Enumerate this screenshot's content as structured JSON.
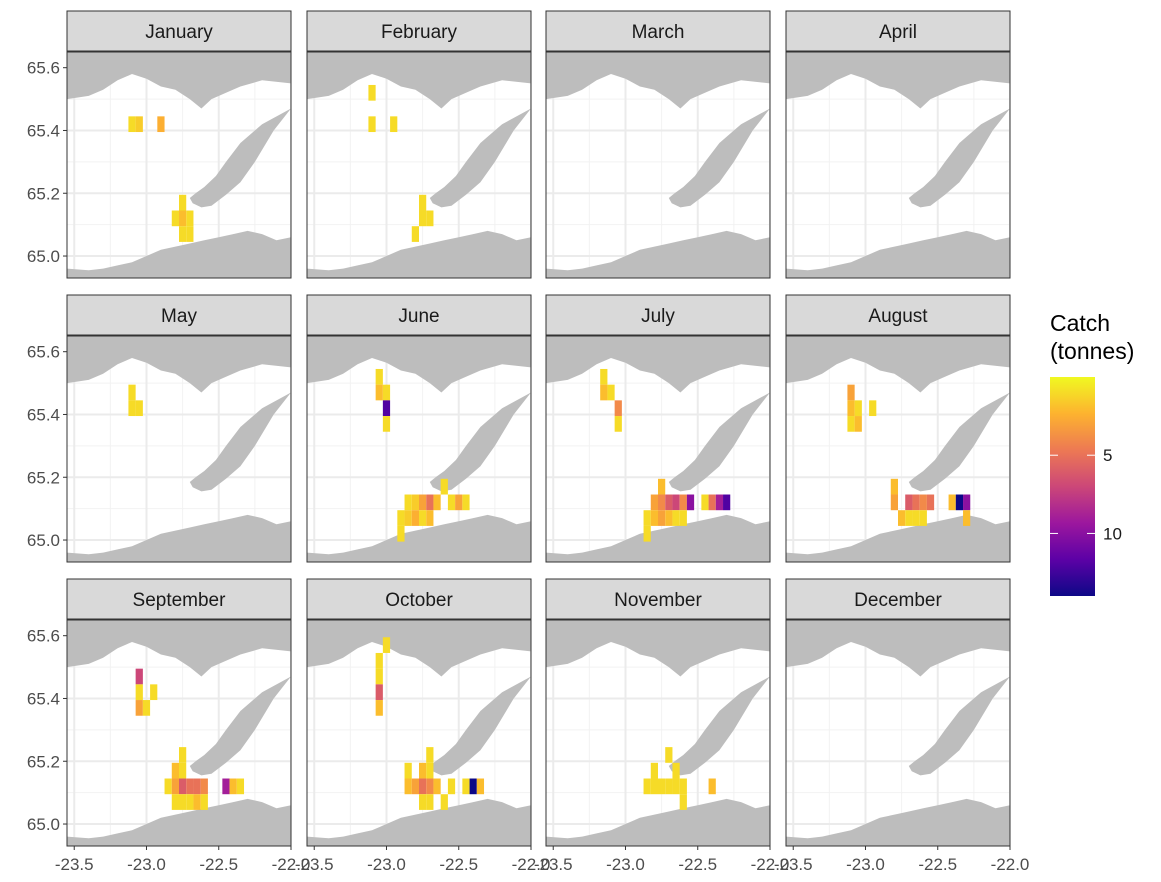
{
  "chart_data": {
    "type": "heatmap",
    "facet_by": "month",
    "layout": {
      "rows": 3,
      "cols": 4
    },
    "x_ticks": [
      "-23.5",
      "-23.0",
      "-22.5",
      "-22.0"
    ],
    "x_tick_values": [
      -23.5,
      -23.0,
      -22.5,
      -22.0
    ],
    "y_ticks": [
      "65.0",
      "65.2",
      "65.4",
      "65.6"
    ],
    "y_tick_values": [
      65.0,
      65.2,
      65.4,
      65.6
    ],
    "xlim": [
      -23.55,
      -22.0
    ],
    "ylim": [
      64.93,
      65.65
    ],
    "cell_size": {
      "lon": 0.05,
      "lat": 0.05
    },
    "legend": {
      "title_lines": [
        "Catch",
        "(tonnes)"
      ],
      "breaks": [
        "5",
        "10"
      ],
      "break_values": [
        5,
        10
      ],
      "range": [
        0,
        14
      ],
      "position": "right",
      "palette": [
        "#f0f921",
        "#fdb32f",
        "#ed7953",
        "#cc4778",
        "#9c179e",
        "#5c01a6",
        "#0d0887"
      ]
    },
    "background": {
      "land_color": "#bdbdbd",
      "sea_color": "#ffffff",
      "grid_color": "#ebebeb",
      "grid": true
    },
    "panels": [
      {
        "month": "January",
        "cells": [
          [
            -23.1,
            65.42,
            1
          ],
          [
            -23.05,
            65.42,
            1.5
          ],
          [
            -22.9,
            65.42,
            2.5
          ],
          [
            -22.75,
            65.17,
            1
          ],
          [
            -22.8,
            65.12,
            1
          ],
          [
            -22.75,
            65.12,
            2
          ],
          [
            -22.7,
            65.12,
            1
          ],
          [
            -22.75,
            65.07,
            1
          ],
          [
            -22.7,
            65.07,
            1
          ]
        ]
      },
      {
        "month": "February",
        "cells": [
          [
            -23.1,
            65.52,
            1
          ],
          [
            -23.1,
            65.42,
            1
          ],
          [
            -22.95,
            65.42,
            1
          ],
          [
            -22.75,
            65.17,
            1
          ],
          [
            -22.75,
            65.12,
            1
          ],
          [
            -22.7,
            65.12,
            1
          ],
          [
            -22.8,
            65.07,
            1
          ]
        ]
      },
      {
        "month": "March",
        "cells": []
      },
      {
        "month": "April",
        "cells": []
      },
      {
        "month": "May",
        "cells": [
          [
            -23.1,
            65.47,
            1
          ],
          [
            -23.1,
            65.42,
            1
          ],
          [
            -23.05,
            65.42,
            1
          ]
        ]
      },
      {
        "month": "June",
        "cells": [
          [
            -23.05,
            65.52,
            1
          ],
          [
            -23.05,
            65.47,
            2
          ],
          [
            -23.0,
            65.47,
            1
          ],
          [
            -23.0,
            65.42,
            12
          ],
          [
            -23.0,
            65.37,
            1
          ],
          [
            -22.6,
            65.17,
            1
          ],
          [
            -22.85,
            65.12,
            1
          ],
          [
            -22.8,
            65.12,
            1.5
          ],
          [
            -22.75,
            65.12,
            3
          ],
          [
            -22.7,
            65.12,
            5
          ],
          [
            -22.65,
            65.12,
            2
          ],
          [
            -22.55,
            65.12,
            1
          ],
          [
            -22.5,
            65.12,
            3
          ],
          [
            -22.45,
            65.12,
            1
          ],
          [
            -22.9,
            65.07,
            1
          ],
          [
            -22.85,
            65.07,
            1.5
          ],
          [
            -22.8,
            65.07,
            2.5
          ],
          [
            -22.75,
            65.07,
            1
          ],
          [
            -22.7,
            65.07,
            2
          ],
          [
            -22.9,
            65.02,
            1
          ]
        ]
      },
      {
        "month": "July",
        "cells": [
          [
            -23.15,
            65.52,
            1
          ],
          [
            -23.15,
            65.47,
            2
          ],
          [
            -23.1,
            65.47,
            1
          ],
          [
            -23.05,
            65.42,
            4
          ],
          [
            -23.05,
            65.37,
            1
          ],
          [
            -22.75,
            65.17,
            2
          ],
          [
            -22.8,
            65.12,
            3
          ],
          [
            -22.75,
            65.12,
            4
          ],
          [
            -22.7,
            65.12,
            6
          ],
          [
            -22.65,
            65.12,
            7
          ],
          [
            -22.6,
            65.12,
            4
          ],
          [
            -22.55,
            65.12,
            10
          ],
          [
            -22.45,
            65.12,
            1
          ],
          [
            -22.4,
            65.12,
            5
          ],
          [
            -22.35,
            65.12,
            9
          ],
          [
            -22.3,
            65.12,
            12
          ],
          [
            -22.85,
            65.07,
            1
          ],
          [
            -22.8,
            65.07,
            2
          ],
          [
            -22.75,
            65.07,
            3
          ],
          [
            -22.7,
            65.07,
            2
          ],
          [
            -22.65,
            65.07,
            1
          ],
          [
            -22.6,
            65.07,
            1
          ],
          [
            -22.85,
            65.02,
            1
          ]
        ]
      },
      {
        "month": "August",
        "cells": [
          [
            -23.1,
            65.47,
            3
          ],
          [
            -23.1,
            65.42,
            2
          ],
          [
            -23.05,
            65.42,
            1
          ],
          [
            -22.95,
            65.42,
            1
          ],
          [
            -23.1,
            65.37,
            1
          ],
          [
            -23.05,
            65.37,
            2
          ],
          [
            -22.8,
            65.17,
            2
          ],
          [
            -22.8,
            65.12,
            3
          ],
          [
            -22.7,
            65.12,
            6
          ],
          [
            -22.65,
            65.12,
            5
          ],
          [
            -22.6,
            65.12,
            4
          ],
          [
            -22.55,
            65.12,
            5
          ],
          [
            -22.4,
            65.12,
            2
          ],
          [
            -22.35,
            65.12,
            14
          ],
          [
            -22.3,
            65.12,
            10
          ],
          [
            -22.75,
            65.07,
            2
          ],
          [
            -22.7,
            65.07,
            1
          ],
          [
            -22.65,
            65.07,
            1
          ],
          [
            -22.6,
            65.07,
            1
          ],
          [
            -22.3,
            65.07,
            2
          ]
        ]
      },
      {
        "month": "September",
        "cells": [
          [
            -23.05,
            65.47,
            7
          ],
          [
            -23.05,
            65.42,
            1
          ],
          [
            -22.95,
            65.42,
            1
          ],
          [
            -23.05,
            65.37,
            3
          ],
          [
            -23.0,
            65.37,
            1
          ],
          [
            -22.75,
            65.22,
            1
          ],
          [
            -22.8,
            65.17,
            2
          ],
          [
            -22.75,
            65.17,
            1
          ],
          [
            -22.85,
            65.12,
            1
          ],
          [
            -22.8,
            65.12,
            3
          ],
          [
            -22.75,
            65.12,
            6
          ],
          [
            -22.7,
            65.12,
            5
          ],
          [
            -22.65,
            65.12,
            5
          ],
          [
            -22.6,
            65.12,
            4
          ],
          [
            -22.45,
            65.12,
            9
          ],
          [
            -22.4,
            65.12,
            2
          ],
          [
            -22.35,
            65.12,
            1
          ],
          [
            -22.8,
            65.07,
            1
          ],
          [
            -22.75,
            65.07,
            1
          ],
          [
            -22.7,
            65.07,
            1
          ],
          [
            -22.65,
            65.07,
            2
          ],
          [
            -22.6,
            65.07,
            1
          ]
        ]
      },
      {
        "month": "October",
        "cells": [
          [
            -23.05,
            65.52,
            1
          ],
          [
            -23.0,
            65.57,
            1
          ],
          [
            -23.05,
            65.47,
            1
          ],
          [
            -23.05,
            65.42,
            6
          ],
          [
            -23.05,
            65.37,
            2
          ],
          [
            -22.7,
            65.22,
            1
          ],
          [
            -22.85,
            65.17,
            1
          ],
          [
            -22.75,
            65.17,
            2
          ],
          [
            -22.7,
            65.17,
            1
          ],
          [
            -22.85,
            65.12,
            2
          ],
          [
            -22.8,
            65.12,
            3
          ],
          [
            -22.75,
            65.12,
            5
          ],
          [
            -22.7,
            65.12,
            4
          ],
          [
            -22.65,
            65.12,
            2
          ],
          [
            -22.55,
            65.12,
            1
          ],
          [
            -22.45,
            65.12,
            1
          ],
          [
            -22.4,
            65.12,
            14
          ],
          [
            -22.35,
            65.12,
            2
          ],
          [
            -22.75,
            65.07,
            1
          ],
          [
            -22.7,
            65.07,
            1
          ],
          [
            -22.6,
            65.07,
            1
          ]
        ]
      },
      {
        "month": "November",
        "cells": [
          [
            -22.7,
            65.22,
            1
          ],
          [
            -22.8,
            65.17,
            1
          ],
          [
            -22.65,
            65.17,
            1
          ],
          [
            -22.85,
            65.12,
            1
          ],
          [
            -22.8,
            65.12,
            1
          ],
          [
            -22.75,
            65.12,
            1
          ],
          [
            -22.7,
            65.12,
            1
          ],
          [
            -22.65,
            65.12,
            1
          ],
          [
            -22.6,
            65.12,
            1
          ],
          [
            -22.4,
            65.12,
            2
          ],
          [
            -22.6,
            65.07,
            1
          ]
        ]
      },
      {
        "month": "December",
        "cells": []
      }
    ]
  }
}
